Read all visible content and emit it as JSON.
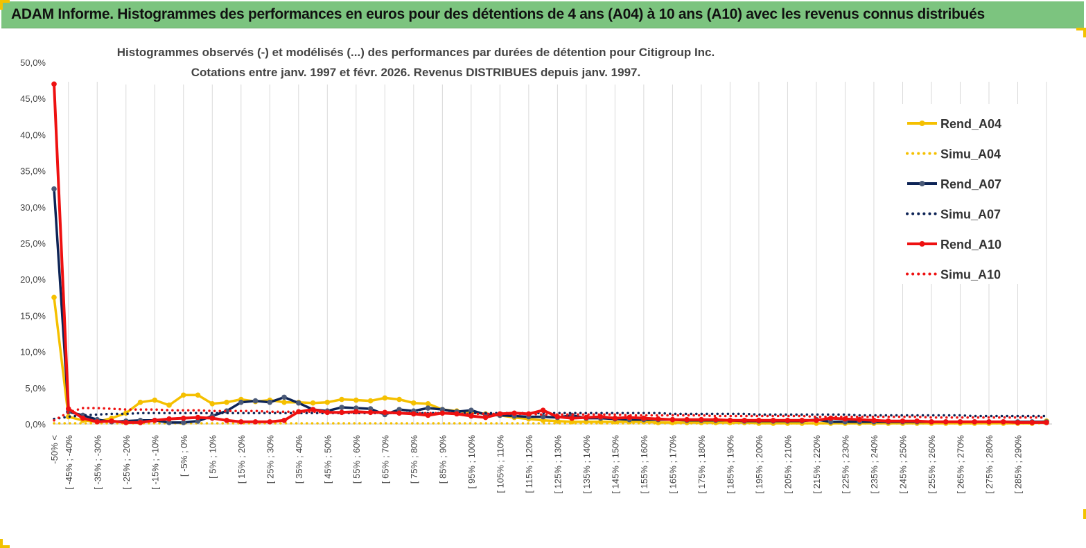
{
  "header": {
    "title": "ADAM Informe. Histogrammes des performances en euros pour des détentions de 4 ans (A04) à 10 ans (A10) avec les revenus connus distribués"
  },
  "colors": {
    "banner_bg": "#7cc47f",
    "accent_corner": "#f2c200",
    "grid": "#d9d9d9"
  },
  "chart_data": {
    "type": "line",
    "title": "Histogrammes observés (-) et modélisés (...) des performances par durées de détention pour Citigroup Inc.",
    "subtitle": "Cotations entre janv. 1997 et févr. 2026. Revenus DISTRIBUES depuis janv. 1997.",
    "xlabel": "",
    "ylabel": "",
    "ylim": [
      0,
      50
    ],
    "yticks": [
      "0,0%",
      "5,0%",
      "10,0%",
      "15,0%",
      "20,0%",
      "25,0%",
      "30,0%",
      "35,0%",
      "40,0%",
      "45,0%",
      "50,0%"
    ],
    "grid": "vertical",
    "legend_position": "right",
    "x_tick_labels": [
      "-50% <",
      "[ -45% ; -40%",
      "[ -35% ; -30%",
      "[ -25% ; -20%",
      "[ -15% ; -10%",
      "[ -5% ; 0%",
      "[ 5% ; 10%",
      "[ 15% ; 20%",
      "[ 25% ; 30%",
      "[ 35% ; 40%",
      "[ 45% ; 50%",
      "[ 55% ; 60%",
      "[ 65% ; 70%",
      "[ 75% ; 80%",
      "[ 85% ; 90%",
      "[ 95% ; 100%",
      "[ 105% ; 110%",
      "[ 115% ; 120%",
      "[ 125% ; 130%",
      "[ 135% ; 140%",
      "[ 145% ; 150%",
      "[ 155% ; 160%",
      "[ 165% ; 170%",
      "[ 175% ; 180%",
      "[ 185% ; 190%",
      "[ 195% ; 200%",
      "[ 205% ; 210%",
      "[ 215% ; 220%",
      "[ 225% ; 230%",
      "[ 235% ; 240%",
      "[ 245% ; 250%",
      "[ 255% ; 260%",
      "[ 265% ; 270%",
      "[ 275% ; 280%",
      "[ 285% ; 290%"
    ],
    "series": [
      {
        "name": "Rend_A04",
        "color": "#f5c000",
        "style": "solid",
        "values": [
          17.5,
          1.0,
          0.5,
          0.3,
          0.8,
          1.5,
          3.0,
          3.3,
          2.6,
          4.0,
          4.0,
          2.8,
          3.0,
          3.4,
          3.1,
          3.3,
          3.0,
          3.0,
          2.9,
          3.0,
          3.4,
          3.3,
          3.2,
          3.6,
          3.4,
          2.9,
          2.8,
          2.0,
          1.8,
          1.6,
          1.4,
          1.2,
          0.9,
          0.7,
          0.5,
          0.4,
          0.3,
          0.3,
          0.3,
          0.3,
          0.3,
          0.3,
          0.2,
          0.2,
          0.2,
          0.2,
          0.2,
          0.2,
          0.2,
          0.1,
          0.1,
          0.1,
          0.1,
          0.1,
          0.1,
          0.1,
          0.1,
          0.1,
          0.1,
          0.1,
          0.1,
          0.1,
          0.1,
          0.1,
          0.1,
          0.1,
          0.1,
          0.1,
          0.1,
          0.4
        ]
      },
      {
        "name": "Simu_A04",
        "color": "#f5c000",
        "style": "dotted",
        "values": [
          0.1,
          0.1,
          0.1,
          0.1,
          0.1,
          0.1,
          0.1,
          0.1,
          0.1,
          0.1,
          0.1,
          0.1,
          0.1,
          0.1,
          0.1,
          0.1,
          0.1,
          0.1,
          0.1,
          0.1,
          0.1,
          0.1,
          0.1,
          0.1,
          0.1,
          0.1,
          0.1,
          0.1,
          0.1,
          0.1,
          0.1,
          0.1,
          0.1,
          0.1,
          0.1,
          0.1,
          0.1,
          0.1,
          0.1,
          0.1,
          0.1,
          0.1,
          0.1,
          0.1,
          0.1,
          0.1,
          0.1,
          0.1,
          0.1,
          0.1,
          0.1,
          0.1,
          0.1,
          0.1,
          0.1,
          0.1,
          0.1,
          0.1,
          0.1,
          0.1,
          0.1,
          0.1,
          0.1,
          0.1,
          0.1,
          0.1,
          0.1,
          0.1,
          0.1,
          0.1
        ]
      },
      {
        "name": "Rend_A07",
        "color": "#0d2456",
        "style": "solid",
        "values": [
          32.5,
          1.7,
          1.2,
          0.6,
          0.3,
          0.4,
          0.5,
          0.5,
          0.2,
          0.2,
          0.4,
          1.1,
          1.8,
          3.0,
          3.2,
          3.0,
          3.7,
          2.9,
          2.0,
          1.8,
          2.3,
          2.2,
          2.1,
          1.3,
          2.0,
          1.8,
          2.2,
          2.0,
          1.7,
          1.9,
          1.3,
          1.2,
          1.1,
          1.0,
          1.0,
          0.9,
          1.2,
          0.8,
          0.8,
          0.7,
          0.6,
          0.6,
          0.6,
          0.6,
          0.5,
          0.5,
          0.5,
          0.5,
          0.4,
          0.4,
          0.4,
          0.4,
          0.4,
          0.6,
          0.3,
          0.3,
          0.3,
          0.3,
          0.3,
          0.3,
          0.3,
          0.3,
          0.3,
          0.3,
          0.3,
          0.3,
          0.3,
          0.3,
          0.3,
          0.3
        ]
      },
      {
        "name": "Simu_A07",
        "color": "#0d2456",
        "style": "dotted",
        "values": [
          0.7,
          1.0,
          1.2,
          1.3,
          1.4,
          1.4,
          1.5,
          1.5,
          1.5,
          1.5,
          1.5,
          1.5,
          1.5,
          1.5,
          1.5,
          1.5,
          1.5,
          1.5,
          1.5,
          1.5,
          1.5,
          1.5,
          1.5,
          1.5,
          1.5,
          1.5,
          1.5,
          1.5,
          1.5,
          1.5,
          1.5,
          1.5,
          1.5,
          1.5,
          1.5,
          1.5,
          1.5,
          1.5,
          1.5,
          1.5,
          1.5,
          1.5,
          1.5,
          1.4,
          1.4,
          1.4,
          1.4,
          1.4,
          1.4,
          1.3,
          1.3,
          1.3,
          1.3,
          1.3,
          1.3,
          1.3,
          1.2,
          1.2,
          1.2,
          1.2,
          1.2,
          1.2,
          1.2,
          1.2,
          1.1,
          1.1,
          1.1,
          1.1,
          1.1,
          1.1
        ]
      },
      {
        "name": "Rend_A10",
        "color": "#ee1111",
        "style": "solid",
        "values": [
          47.0,
          2.1,
          0.8,
          0.3,
          0.4,
          0.2,
          0.2,
          0.5,
          0.7,
          0.8,
          0.9,
          0.8,
          0.5,
          0.3,
          0.3,
          0.3,
          0.5,
          1.7,
          2.0,
          1.6,
          1.6,
          1.7,
          1.6,
          1.6,
          1.5,
          1.4,
          1.2,
          1.5,
          1.4,
          1.1,
          0.9,
          1.4,
          1.5,
          1.4,
          1.9,
          1.0,
          0.8,
          0.9,
          1.0,
          0.8,
          0.9,
          0.8,
          0.7,
          0.6,
          0.6,
          0.6,
          0.6,
          0.5,
          0.5,
          0.5,
          0.5,
          0.5,
          0.5,
          0.5,
          0.8,
          0.7,
          0.6,
          0.5,
          0.4,
          0.4,
          0.4,
          0.3,
          0.3,
          0.3,
          0.3,
          0.3,
          0.3,
          0.2,
          0.2,
          0.2
        ]
      },
      {
        "name": "Simu_A10",
        "color": "#ee1111",
        "style": "dotted",
        "values": [
          0.5,
          1.6,
          2.2,
          2.2,
          2.1,
          2.0,
          2.0,
          2.0,
          1.9,
          1.9,
          1.9,
          1.8,
          1.8,
          1.8,
          1.8,
          1.7,
          1.7,
          1.7,
          1.7,
          1.6,
          1.6,
          1.6,
          1.6,
          1.5,
          1.5,
          1.5,
          1.5,
          1.5,
          1.4,
          1.4,
          1.4,
          1.4,
          1.4,
          1.4,
          1.3,
          1.3,
          1.3,
          1.3,
          1.3,
          1.3,
          1.2,
          1.2,
          1.2,
          1.2,
          1.2,
          1.2,
          1.1,
          1.1,
          1.1,
          1.1,
          1.1,
          1.1,
          1.1,
          1.0,
          1.0,
          1.0,
          1.0,
          1.0,
          1.0,
          1.0,
          1.0,
          0.9,
          0.9,
          0.9,
          0.9,
          0.9,
          0.9,
          0.9,
          0.9,
          0.9
        ]
      }
    ]
  }
}
